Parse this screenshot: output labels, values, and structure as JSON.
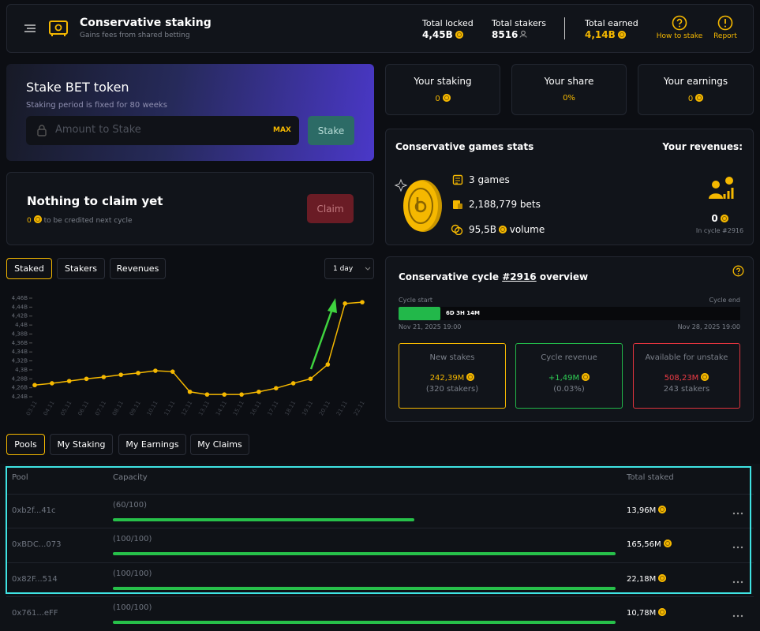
{
  "header": {
    "title": "Conservative staking",
    "subtitle": "Gains fees from shared betting",
    "stats": [
      {
        "label": "Total locked",
        "value": "4,45B"
      },
      {
        "label": "Total stakers",
        "value": "8516"
      },
      {
        "label": "Total earned",
        "value": "4,14B"
      }
    ],
    "links": [
      "How to stake",
      "Report"
    ]
  },
  "stake_card": {
    "title": "Stake BET token",
    "note": "Staking period is fixed for 80 weeks",
    "placeholder": "Amount to Stake",
    "max": "MAX",
    "button": "Stake"
  },
  "claim_card": {
    "title": "Nothing to claim yet",
    "amount": "0",
    "note": "to be credited next cycle",
    "button": "Claim"
  },
  "summary": [
    {
      "label": "Your staking",
      "value": "0"
    },
    {
      "label": "Your share",
      "value": "0%"
    },
    {
      "label": "Your earnings",
      "value": "0"
    }
  ],
  "games_stats": {
    "title": "Conservative games stats",
    "games": "3 games",
    "bets": "2,188,779 bets",
    "volume_value": "95,5B",
    "volume_label": "volume"
  },
  "revenues": {
    "title": "Your revenues:",
    "value": "0",
    "note": "In cycle #2916"
  },
  "chart_tabs": [
    "Staked",
    "Stakers",
    "Revenues"
  ],
  "interval": "1 day",
  "chart_data": {
    "type": "line",
    "color": "#f5b800",
    "categories": [
      "03.11",
      "04.11",
      "05.11",
      "06.11",
      "07.11",
      "08.11",
      "09.11",
      "10.11",
      "11.11",
      "12.11",
      "13.11",
      "14.11",
      "15.11",
      "16.11",
      "17.11",
      "18.11",
      "19.11",
      "20.11",
      "21.11",
      "22.11"
    ],
    "values": [
      4.266,
      4.27,
      4.275,
      4.28,
      4.284,
      4.289,
      4.293,
      4.298,
      4.296,
      4.251,
      4.245,
      4.245,
      4.245,
      4.251,
      4.259,
      4.27,
      4.28,
      4.312,
      4.448,
      4.451
    ],
    "ylim": [
      4.24,
      4.46
    ],
    "yticks": [
      {
        "value": 4.24,
        "label": "4,24B"
      },
      {
        "value": 4.26,
        "label": "4,26B"
      },
      {
        "value": 4.28,
        "label": "4,28B"
      },
      {
        "value": 4.3,
        "label": "4,3B"
      },
      {
        "value": 4.32,
        "label": "4,32B"
      },
      {
        "value": 4.34,
        "label": "4,34B"
      },
      {
        "value": 4.36,
        "label": "4,36B"
      },
      {
        "value": 4.38,
        "label": "4,38B"
      },
      {
        "value": 4.4,
        "label": "4,4B"
      },
      {
        "value": 4.42,
        "label": "4,42B"
      },
      {
        "value": 4.44,
        "label": "4,44B"
      },
      {
        "value": 4.46,
        "label": "4,46B"
      }
    ],
    "grid": false
  },
  "cycle": {
    "title_prefix": "Conservative cycle",
    "cycle_link": "#2916",
    "title_suffix": "overview",
    "start_label": "Cycle start",
    "end_label": "Cycle end",
    "remaining": "6D 3H 14M",
    "start_date": "Nov 21, 2025 19:00",
    "end_date": "Nov 28, 2025 19:00",
    "boxes": [
      {
        "title": "New stakes",
        "value": "242,39M",
        "note": "(320 stakers)"
      },
      {
        "title": "Cycle revenue",
        "value": "+1,49M",
        "note": "(0.03%)"
      },
      {
        "title": "Available for unstake",
        "value": "508,23M",
        "note": "243 stakers"
      }
    ]
  },
  "table_tabs": [
    "Pools",
    "My Staking",
    "My Earnings",
    "My Claims"
  ],
  "table": {
    "columns": [
      "Pool",
      "Capacity",
      "Total staked"
    ],
    "rows": [
      {
        "pool": "0xb2f...41c",
        "capacity_label": "(60/100)",
        "capacity_used": 60,
        "capacity_total": 100,
        "total_staked": "13,96M"
      },
      {
        "pool": "0xBDC...073",
        "capacity_label": "(100/100)",
        "capacity_used": 100,
        "capacity_total": 100,
        "total_staked": "165,56M"
      },
      {
        "pool": "0x82F...514",
        "capacity_label": "(100/100)",
        "capacity_used": 100,
        "capacity_total": 100,
        "total_staked": "22,18M"
      },
      {
        "pool": "0x761...eFF",
        "capacity_label": "(100/100)",
        "capacity_used": 100,
        "capacity_total": 100,
        "total_staked": "10,78M"
      }
    ]
  }
}
